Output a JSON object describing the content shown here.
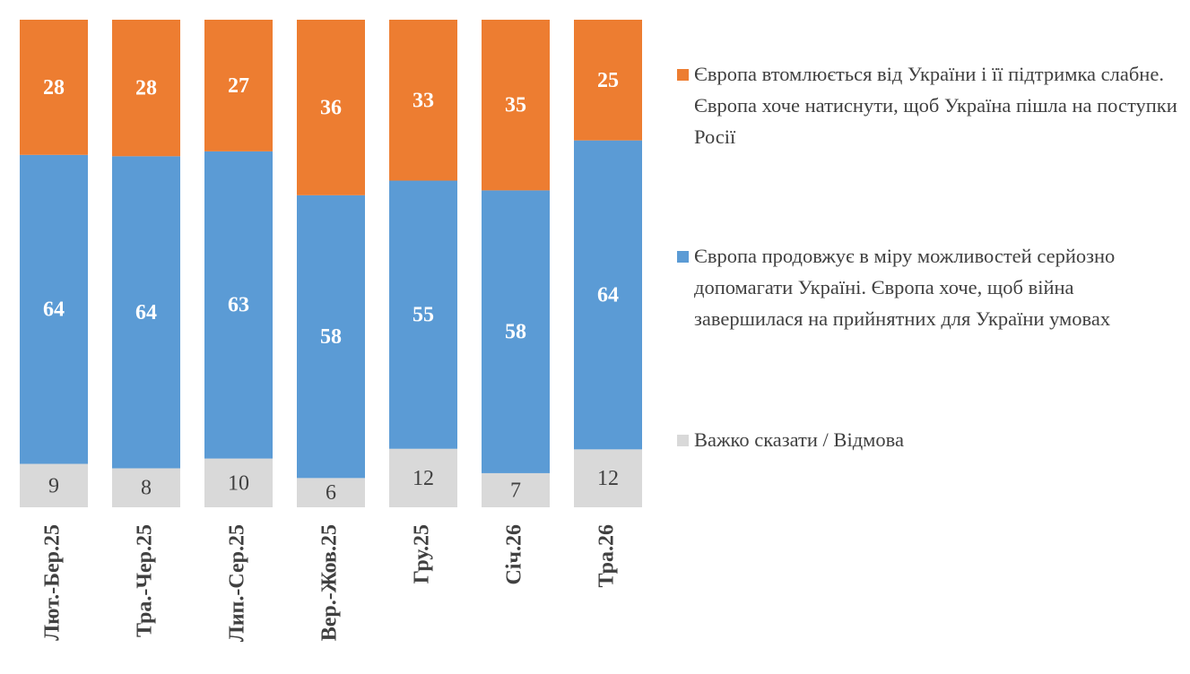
{
  "chart_data": {
    "type": "stacked_percent_bar",
    "categories": [
      "Лют.-Бер.25",
      "Тра.-Чер.25",
      "Лип.-Сер.25",
      "Вер.-Жов.25",
      "Гру.25",
      "Січ.26",
      "Тра.26"
    ],
    "series": [
      {
        "name": "Важко сказати / Відмова",
        "color": "#d9d9d9",
        "label_color": "#404040",
        "values": [
          9,
          8,
          10,
          6,
          12,
          7,
          12
        ]
      },
      {
        "name": "Європа продовжує в міру можливостей серйозно допомагати Україні. Європа хоче, щоб війна завершилася на прийнятних для України умовах",
        "color": "#5b9bd5",
        "label_color": "#ffffff",
        "values": [
          64,
          64,
          63,
          58,
          55,
          58,
          64
        ]
      },
      {
        "name": "Європа втомлюється від України і її підтримка слабне. Європа хоче натиснути, щоб Україна пішла на поступки Росії",
        "color": "#ed7d31",
        "label_color": "#ffffff",
        "values": [
          28,
          28,
          27,
          36,
          33,
          35,
          25
        ]
      }
    ],
    "legend": "right"
  }
}
